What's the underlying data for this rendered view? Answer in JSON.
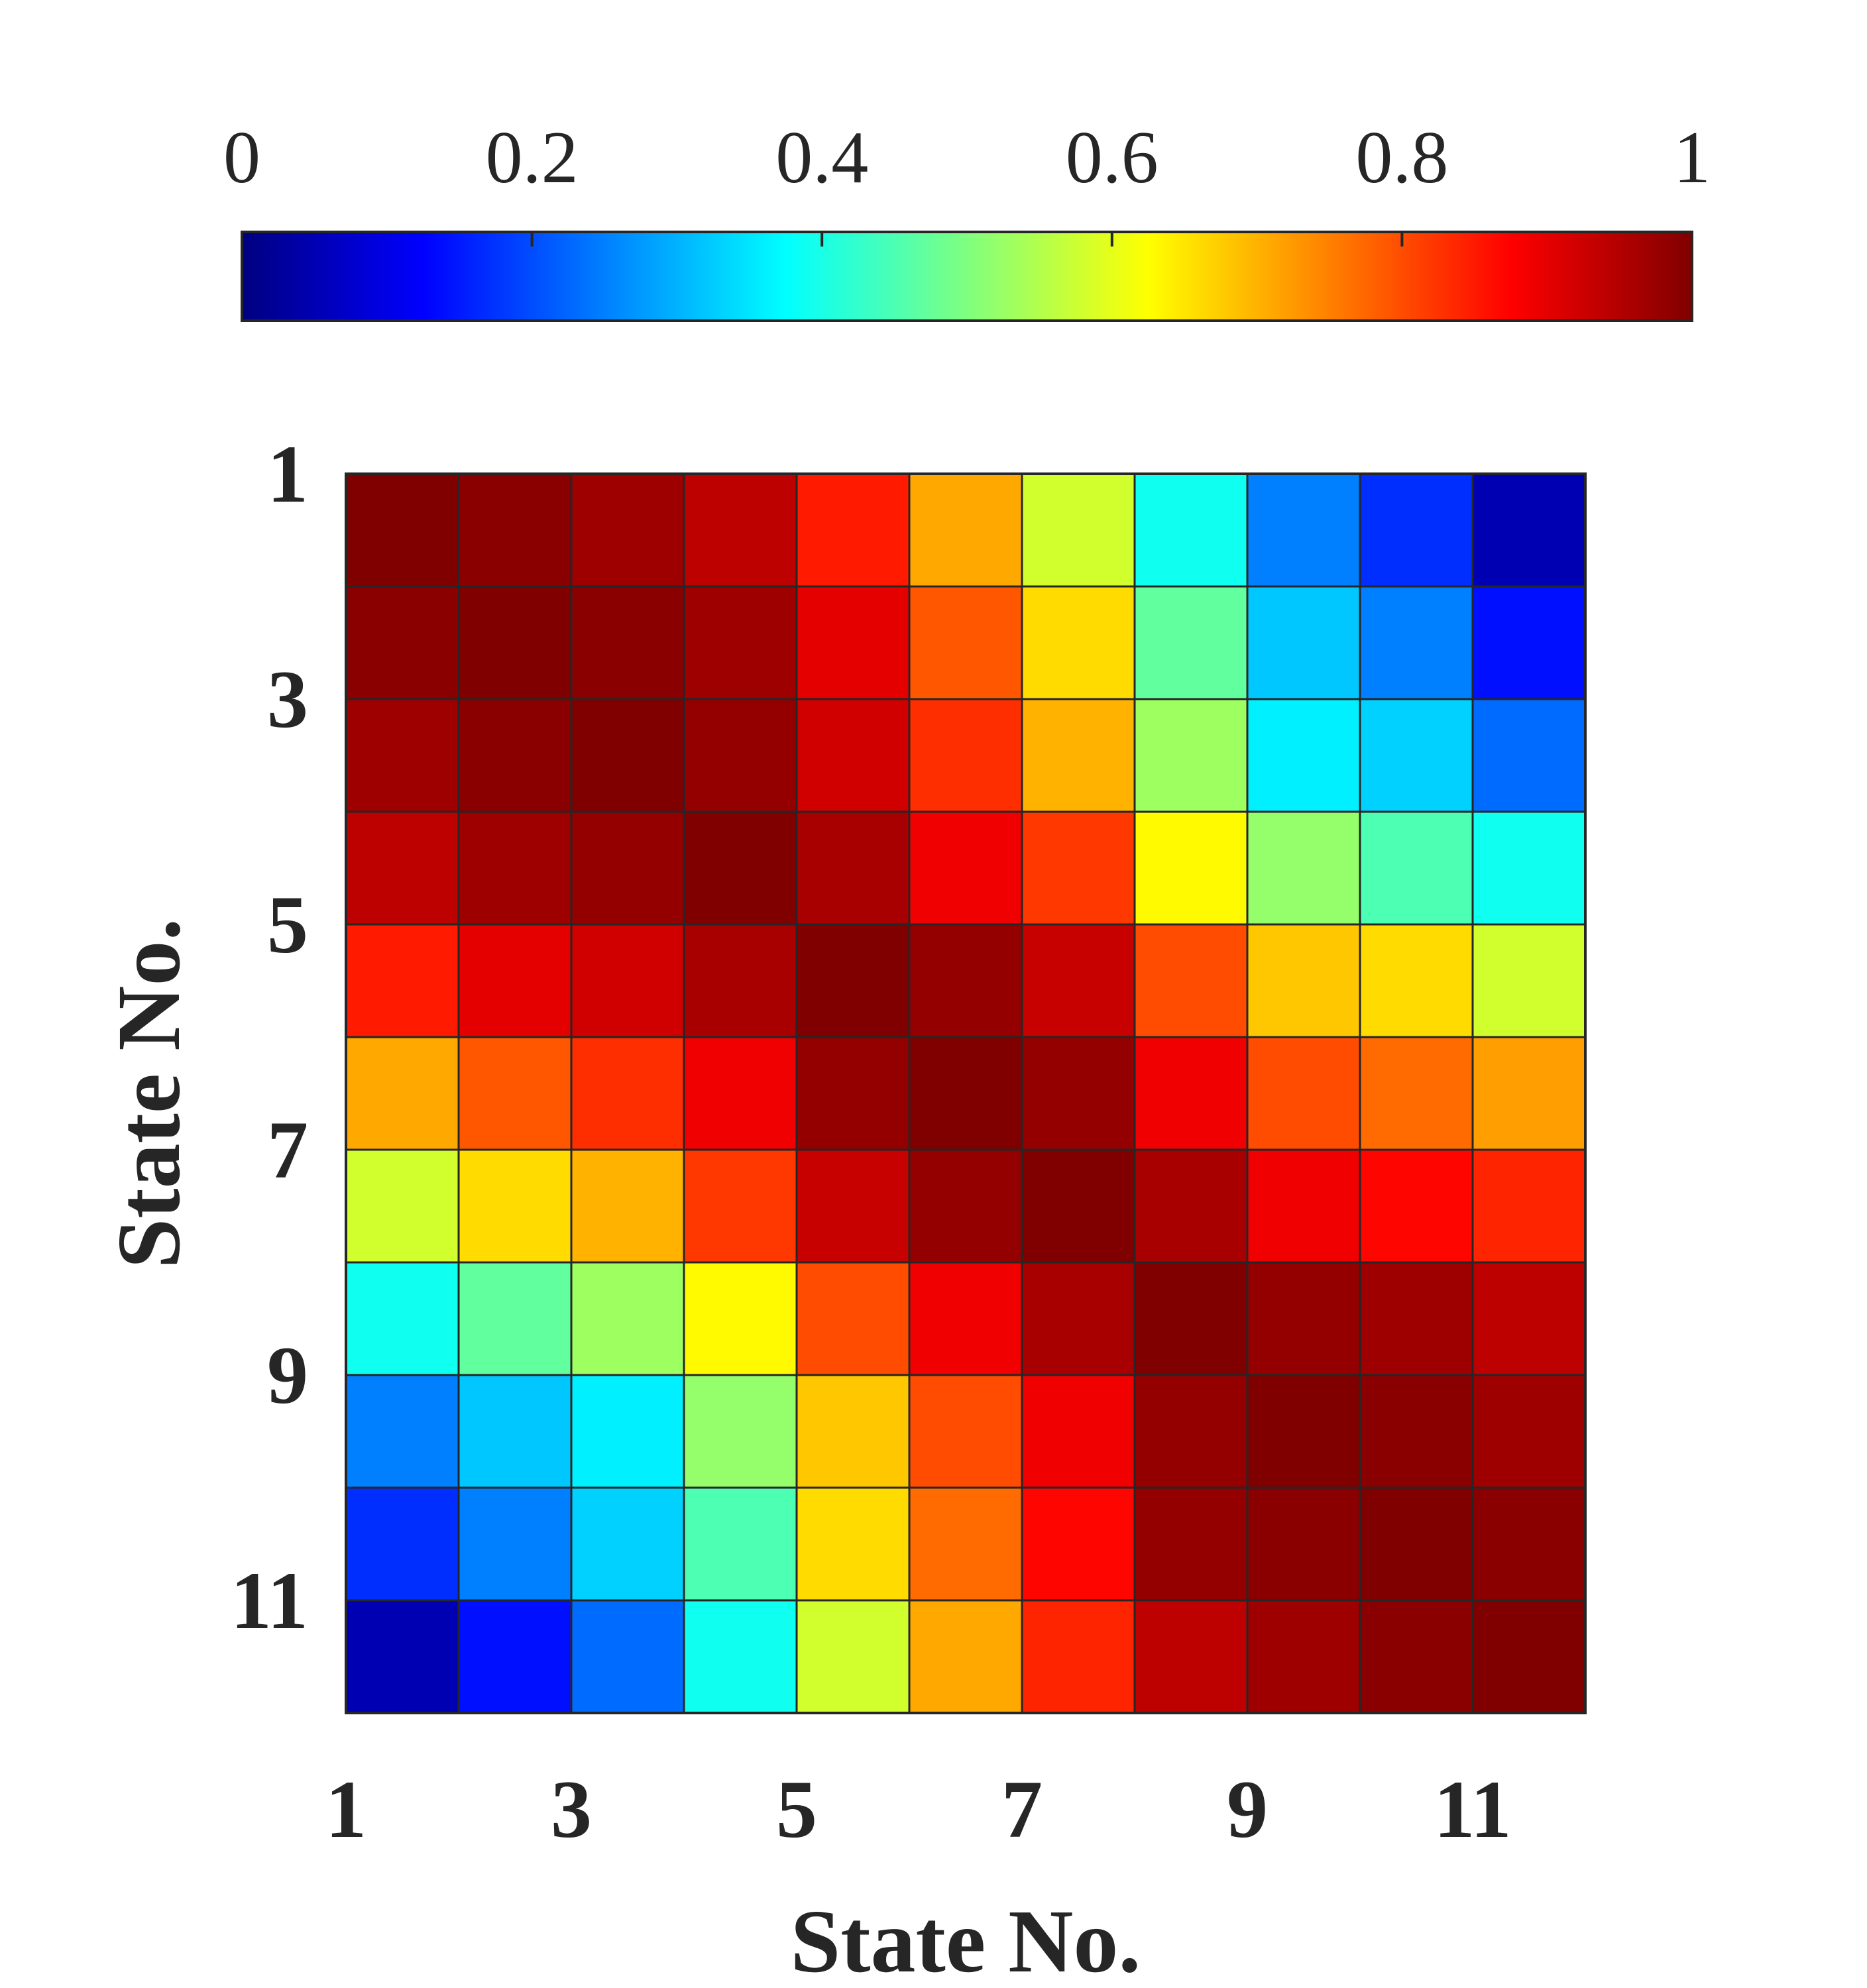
{
  "chart_data": {
    "type": "heatmap",
    "title": "",
    "xlabel": "State No.",
    "ylabel": "State No.",
    "x_ticks": [
      "1",
      "3",
      "5",
      "7",
      "9",
      "11"
    ],
    "y_ticks": [
      "1",
      "3",
      "5",
      "7",
      "9",
      "11"
    ],
    "rows": [
      "1",
      "2",
      "3",
      "4",
      "5",
      "6",
      "7",
      "8",
      "9",
      "10",
      "11"
    ],
    "columns": [
      "1",
      "2",
      "3",
      "4",
      "5",
      "6",
      "7",
      "8",
      "9",
      "10",
      "11"
    ],
    "values": [
      [
        1.0,
        0.99,
        0.97,
        0.94,
        0.85,
        0.71,
        0.58,
        0.39,
        0.25,
        0.17,
        0.05
      ],
      [
        0.99,
        1.0,
        0.99,
        0.97,
        0.9,
        0.79,
        0.66,
        0.47,
        0.32,
        0.25,
        0.14
      ],
      [
        0.97,
        0.99,
        1.0,
        0.98,
        0.92,
        0.83,
        0.7,
        0.53,
        0.36,
        0.33,
        0.23
      ],
      [
        0.94,
        0.97,
        0.98,
        1.0,
        0.96,
        0.89,
        0.82,
        0.63,
        0.52,
        0.45,
        0.39
      ],
      [
        0.85,
        0.9,
        0.92,
        0.96,
        1.0,
        0.98,
        0.93,
        0.8,
        0.68,
        0.66,
        0.58
      ],
      [
        0.71,
        0.79,
        0.83,
        0.89,
        0.98,
        1.0,
        0.98,
        0.89,
        0.8,
        0.77,
        0.72
      ],
      [
        0.58,
        0.66,
        0.7,
        0.82,
        0.93,
        0.98,
        1.0,
        0.96,
        0.89,
        0.87,
        0.84
      ],
      [
        0.39,
        0.47,
        0.53,
        0.63,
        0.8,
        0.89,
        0.96,
        1.0,
        0.98,
        0.97,
        0.94
      ],
      [
        0.25,
        0.32,
        0.36,
        0.52,
        0.68,
        0.8,
        0.89,
        0.98,
        1.0,
        0.99,
        0.97
      ],
      [
        0.17,
        0.25,
        0.33,
        0.45,
        0.66,
        0.77,
        0.87,
        0.98,
        0.99,
        1.0,
        0.99
      ],
      [
        0.05,
        0.14,
        0.23,
        0.39,
        0.58,
        0.71,
        0.84,
        0.94,
        0.97,
        0.99,
        1.0
      ]
    ],
    "colorbar": {
      "orientation": "horizontal",
      "placement": "top",
      "colormap": "jet",
      "range": [
        0,
        1
      ],
      "ticks": [
        "0",
        "0.2",
        "0.4",
        "0.6",
        "0.8",
        "1"
      ]
    },
    "grid": false
  }
}
